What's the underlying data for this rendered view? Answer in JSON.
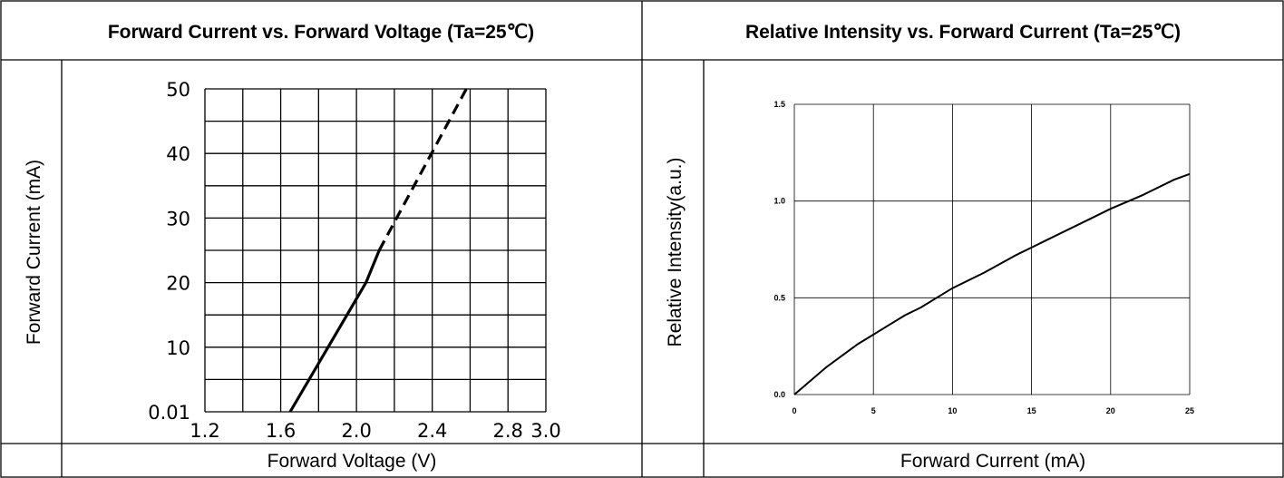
{
  "charts_text": {
    "left_title": "Forward Current vs. Forward Voltage (Ta=25℃)",
    "right_title": "Relative Intensity vs. Forward Current (Ta=25℃)"
  },
  "chart_data": [
    {
      "type": "line",
      "title": "Forward Current vs. Forward Voltage (Ta=25℃)",
      "xlabel": "Forward Voltage (V)",
      "ylabel": "Forward Current (mA)",
      "xlim": [
        1.2,
        3.0
      ],
      "ylim": [
        0,
        50
      ],
      "x_ticks": [
        "1.2",
        "1.6",
        "2.0",
        "2.4",
        "2.8",
        "3.0"
      ],
      "y_ticks": [
        "0.01",
        "10",
        "20",
        "30",
        "40",
        "50"
      ],
      "grid": true,
      "series": [
        {
          "style": "solid",
          "points": [
            [
              1.65,
              0
            ],
            [
              2.05,
              20
            ],
            [
              2.12,
              25
            ]
          ]
        },
        {
          "style": "dashed",
          "points": [
            [
              2.12,
              25
            ],
            [
              2.58,
              50
            ]
          ]
        }
      ]
    },
    {
      "type": "line",
      "title": "Relative Intensity vs. Forward Current (Ta=25℃)",
      "xlabel": "Forward Current (mA)",
      "ylabel": "Relative Intensity(a.u.)",
      "xlim": [
        0,
        25
      ],
      "ylim": [
        0,
        1.5
      ],
      "x_ticks": [
        "0",
        "5",
        "10",
        "15",
        "20",
        "25"
      ],
      "y_ticks": [
        "0.0",
        "0.5",
        "1.0",
        "1.5"
      ],
      "grid": true,
      "series": [
        {
          "style": "solid",
          "points": [
            [
              0,
              0
            ],
            [
              1,
              0.07
            ],
            [
              2,
              0.14
            ],
            [
              3,
              0.2
            ],
            [
              4,
              0.26
            ],
            [
              5,
              0.31
            ],
            [
              6,
              0.36
            ],
            [
              7,
              0.41
            ],
            [
              8,
              0.45
            ],
            [
              9,
              0.5
            ],
            [
              10,
              0.55
            ],
            [
              12,
              0.63
            ],
            [
              14,
              0.72
            ],
            [
              15,
              0.76
            ],
            [
              16,
              0.8
            ],
            [
              18,
              0.88
            ],
            [
              20,
              0.96
            ],
            [
              22,
              1.03
            ],
            [
              24,
              1.11
            ],
            [
              25,
              1.14
            ]
          ]
        }
      ]
    }
  ]
}
